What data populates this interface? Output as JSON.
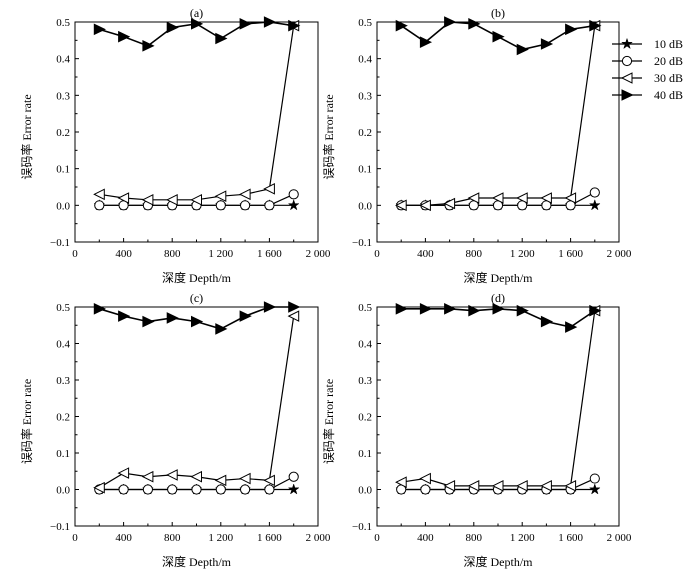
{
  "chart_data": {
    "type": "line",
    "x_ticks": [
      "0",
      "400",
      "800",
      "1 200",
      "1 600",
      "2 000"
    ],
    "y_ticks": [
      "−0.1",
      "0.0",
      "0.1",
      "0.2",
      "0.3",
      "0.4",
      "0.5"
    ],
    "xlim": [
      0,
      2000
    ],
    "ylim": [
      -0.1,
      0.5
    ],
    "xlabel": "深度 Depth/m",
    "ylabel": "误码率 Error rate",
    "grid": false,
    "legend_position": "top-right",
    "legend": [
      {
        "label": "10 dB",
        "marker": "star"
      },
      {
        "label": "20 dB",
        "marker": "circle"
      },
      {
        "label": "30 dB",
        "marker": "triangle-left"
      },
      {
        "label": "40 dB",
        "marker": "triangle-right"
      }
    ],
    "panels": [
      {
        "label": "(a)",
        "x": [
          200,
          400,
          600,
          800,
          1000,
          1200,
          1400,
          1600,
          1800
        ],
        "series": [
          {
            "values": [
              0.0,
              0.0,
              0.0,
              0.0,
              0.0,
              0.0,
              0.0,
              0.0,
              0.0
            ]
          },
          {
            "values": [
              0.0,
              0.0,
              0.0,
              0.0,
              0.0,
              0.0,
              0.0,
              0.0,
              0.03
            ]
          },
          {
            "values": [
              0.03,
              0.02,
              0.015,
              0.015,
              0.015,
              0.025,
              0.03,
              0.045,
              0.49
            ]
          },
          {
            "values": [
              0.48,
              0.46,
              0.435,
              0.485,
              0.495,
              0.455,
              0.495,
              0.5,
              0.49
            ]
          }
        ]
      },
      {
        "label": "(b)",
        "x": [
          200,
          400,
          600,
          800,
          1000,
          1200,
          1400,
          1600,
          1800
        ],
        "series": [
          {
            "values": [
              0.0,
              0.0,
              0.0,
              0.0,
              0.0,
              0.0,
              0.0,
              0.0,
              0.0
            ]
          },
          {
            "values": [
              0.0,
              0.0,
              0.0,
              0.0,
              0.0,
              0.0,
              0.0,
              0.0,
              0.035
            ]
          },
          {
            "values": [
              0.0,
              0.0,
              0.005,
              0.02,
              0.02,
              0.02,
              0.02,
              0.02,
              0.49
            ]
          },
          {
            "values": [
              0.49,
              0.445,
              0.5,
              0.495,
              0.46,
              0.425,
              0.44,
              0.48,
              0.49
            ]
          }
        ]
      },
      {
        "label": "(c)",
        "x": [
          200,
          400,
          600,
          800,
          1000,
          1200,
          1400,
          1600,
          1800
        ],
        "series": [
          {
            "values": [
              0.0,
              0.0,
              0.0,
              0.0,
              0.0,
              0.0,
              0.0,
              0.0,
              0.0
            ]
          },
          {
            "values": [
              0.0,
              0.0,
              0.0,
              0.0,
              0.0,
              0.0,
              0.0,
              0.0,
              0.035
            ]
          },
          {
            "values": [
              0.005,
              0.045,
              0.035,
              0.04,
              0.035,
              0.025,
              0.03,
              0.025,
              0.475
            ]
          },
          {
            "values": [
              0.495,
              0.475,
              0.46,
              0.47,
              0.46,
              0.44,
              0.475,
              0.5,
              0.5
            ]
          }
        ]
      },
      {
        "label": "(d)",
        "x": [
          200,
          400,
          600,
          800,
          1000,
          1200,
          1400,
          1600,
          1800
        ],
        "series": [
          {
            "values": [
              0.0,
              0.0,
              0.0,
              0.0,
              0.0,
              0.0,
              0.0,
              0.0,
              0.0
            ]
          },
          {
            "values": [
              0.0,
              0.0,
              0.0,
              0.0,
              0.0,
              0.0,
              0.0,
              0.0,
              0.03
            ]
          },
          {
            "values": [
              0.02,
              0.03,
              0.01,
              0.01,
              0.01,
              0.01,
              0.01,
              0.01,
              0.49
            ]
          },
          {
            "values": [
              0.495,
              0.495,
              0.495,
              0.49,
              0.495,
              0.49,
              0.46,
              0.445,
              0.49
            ]
          }
        ]
      }
    ]
  }
}
